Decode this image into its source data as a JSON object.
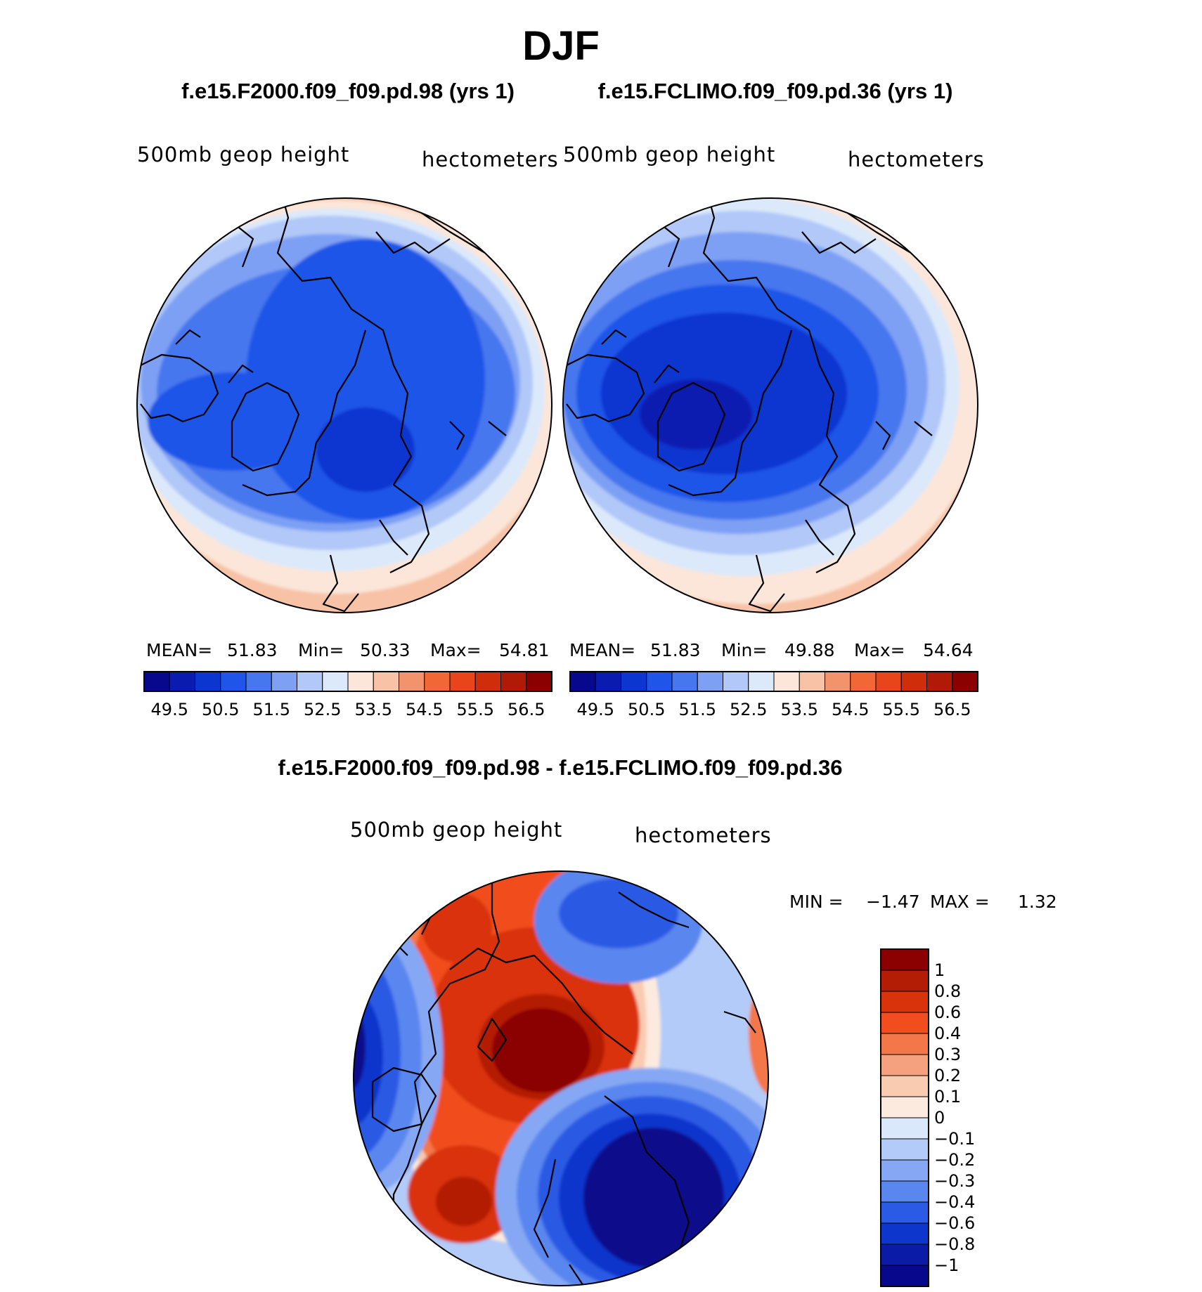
{
  "figure": {
    "title": "DJF",
    "diff_title": "f.e15.F2000.f09_f09.pd.98 - f.e15.FCLIMO.f09_f09.pd.36"
  },
  "chart_data": [
    {
      "type": "heatmap",
      "projection": "north-polar-stereographic",
      "title": "f.e15.F2000.f09_f09.pd.98 (yrs 1)",
      "left_label": "500mb geop height",
      "right_label": "hectometers",
      "stats": {
        "mean_label": "MEAN=",
        "mean": "51.83",
        "min_label": "Min=",
        "min": "50.33",
        "max_label": "Max=",
        "max": "54.81"
      },
      "colorbar": {
        "orientation": "horizontal",
        "levels": [
          49.5,
          50,
          50.5,
          51,
          51.5,
          52,
          52.5,
          53,
          53.5,
          54,
          54.5,
          55,
          55.5,
          56,
          56.5
        ],
        "tick_labels": [
          "49.5",
          "50.5",
          "51.5",
          "52.5",
          "53.5",
          "54.5",
          "55.5",
          "56.5"
        ],
        "colors": [
          "#08088c",
          "#0a1bb0",
          "#0c36d0",
          "#1f55e8",
          "#4677ee",
          "#7ea0f4",
          "#b1c8f8",
          "#dbe9fb",
          "#fbe6d9",
          "#f7c2a6",
          "#f3936c",
          "#f16735",
          "#e9451a",
          "#d02d0a",
          "#b01a06",
          "#8b0000"
        ]
      }
    },
    {
      "type": "heatmap",
      "projection": "north-polar-stereographic",
      "title": "f.e15.FCLIMO.f09_f09.pd.36 (yrs 1)",
      "left_label": "500mb geop height",
      "right_label": "hectometers",
      "stats": {
        "mean_label": "MEAN=",
        "mean": "51.83",
        "min_label": "Min=",
        "min": "49.88",
        "max_label": "Max=",
        "max": "54.64"
      },
      "colorbar": {
        "orientation": "horizontal",
        "levels": [
          49.5,
          50,
          50.5,
          51,
          51.5,
          52,
          52.5,
          53,
          53.5,
          54,
          54.5,
          55,
          55.5,
          56,
          56.5
        ],
        "tick_labels": [
          "49.5",
          "50.5",
          "51.5",
          "52.5",
          "53.5",
          "54.5",
          "55.5",
          "56.5"
        ],
        "colors": [
          "#08088c",
          "#0a1bb0",
          "#0c36d0",
          "#1f55e8",
          "#4677ee",
          "#7ea0f4",
          "#b1c8f8",
          "#dbe9fb",
          "#fbe6d9",
          "#f7c2a6",
          "#f3936c",
          "#f16735",
          "#e9451a",
          "#d02d0a",
          "#b01a06",
          "#8b0000"
        ]
      }
    },
    {
      "type": "heatmap",
      "projection": "north-polar-stereographic",
      "title": "f.e15.F2000.f09_f09.pd.98 - f.e15.FCLIMO.f09_f09.pd.36",
      "left_label": "500mb geop height",
      "right_label": "hectometers",
      "stats": {
        "min_label": "MIN =",
        "min": "−1.47",
        "max_label": "MAX =",
        "max": "1.32"
      },
      "colorbar": {
        "orientation": "vertical",
        "levels": [
          1,
          0.8,
          0.6,
          0.4,
          0.3,
          0.2,
          0.1,
          0,
          -0.1,
          -0.2,
          -0.3,
          -0.4,
          -0.6,
          -0.8,
          -1
        ],
        "tick_labels": [
          "1",
          "0.8",
          "0.6",
          "0.4",
          "0.3",
          "0.2",
          "0.1",
          "0",
          "−0.1",
          "−0.2",
          "−0.3",
          "−0.4",
          "−0.6",
          "−0.8",
          "−1"
        ],
        "colors": [
          "#8b0000",
          "#b31d06",
          "#d9330b",
          "#f14d1e",
          "#f37749",
          "#f5a07f",
          "#f9cbb0",
          "#fdeade",
          "#d9e9fb",
          "#b3cbf8",
          "#86a8f4",
          "#5a86ef",
          "#2b5ae4",
          "#0c36cc",
          "#0a1ba8",
          "#08088c"
        ]
      }
    }
  ]
}
